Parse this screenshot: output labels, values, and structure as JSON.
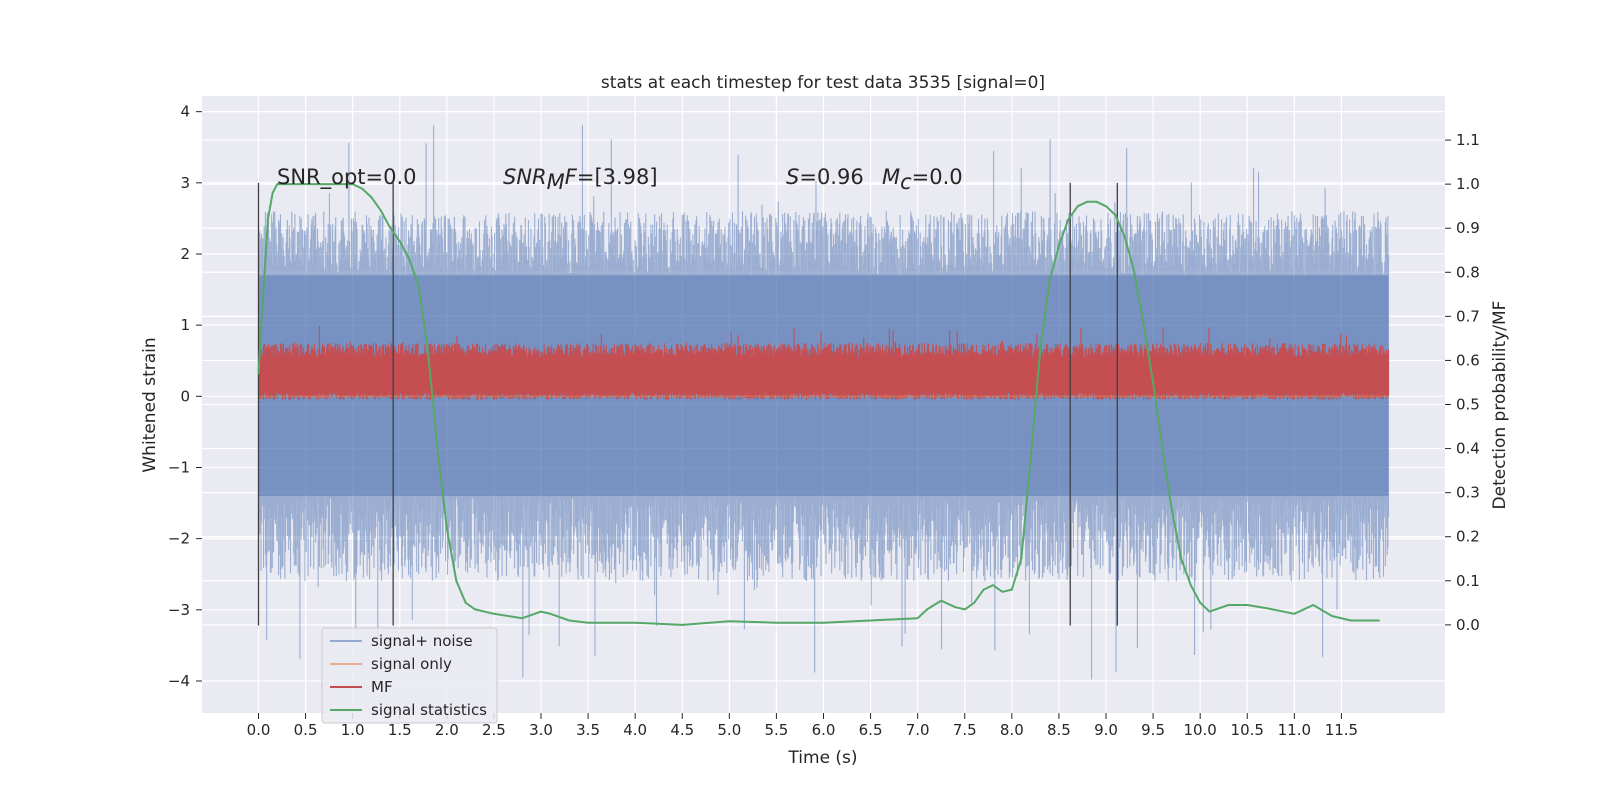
{
  "chart_data": {
    "type": "line",
    "title": "stats at each timestep for test data 3535 [signal=0]",
    "xlabel": "Time (s)",
    "ylabel_left": "Whitened strain",
    "ylabel_right": "Detection probability/MF",
    "xlim": [
      -0.6,
      12.6
    ],
    "ylim_left": [
      -4.45,
      4.22
    ],
    "ylim_right": [
      -0.2,
      1.2
    ],
    "x_ticks": [
      "0.0",
      "0.5",
      "1.0",
      "1.5",
      "2.0",
      "2.5",
      "3.0",
      "3.5",
      "4.0",
      "4.5",
      "5.0",
      "5.5",
      "6.0",
      "6.5",
      "7.0",
      "7.5",
      "8.0",
      "8.5",
      "9.0",
      "9.5",
      "10.0",
      "10.5",
      "11.0",
      "11.5"
    ],
    "y_ticks_left": [
      "4",
      "3",
      "2",
      "1",
      "0",
      "−1",
      "−2",
      "−3",
      "−4"
    ],
    "y_ticks_right": [
      "0.0",
      "0.1",
      "0.2",
      "0.3",
      "0.4",
      "0.5",
      "0.6",
      "0.7",
      "0.8",
      "0.9",
      "1.0",
      "1.1"
    ],
    "grid": true,
    "legend_position": "lower-left",
    "annotations": {
      "snr_opt": "SNR_opt=0.0",
      "snr_mf_math": "SNR",
      "snr_mf_sub": "M",
      "snr_mf_rest_it": "F",
      "snr_mf_value": "=[3.98]",
      "s_math": "S",
      "s_value": "=0.96",
      "mc_math": "M",
      "mc_sub": "c",
      "mc_value": "=0.0"
    },
    "vertical_markers": {
      "x": [
        0.0,
        1.43,
        8.62,
        9.12
      ],
      "y_range_left": [
        -3.22,
        3.0
      ]
    },
    "series": [
      {
        "name": "signal+ noise",
        "color": "#4c72b0",
        "axis": "left",
        "x_range": [
          0.0,
          12.0
        ],
        "dense_band": [
          -1.4,
          1.7
        ],
        "typical_max": 2.6,
        "typical_min": -2.6,
        "peak_max": 3.85,
        "peak_min": -4.05
      },
      {
        "name": "signal only",
        "color": "#dd8452",
        "axis": "left",
        "x": [
          0.0,
          12.0
        ],
        "y": [
          0.0,
          0.0
        ]
      },
      {
        "name": "MF",
        "color": "#c44e52",
        "axis": "left",
        "x_range": [
          0.0,
          12.0
        ],
        "dense_band": [
          0.05,
          0.55
        ],
        "typical_max": 0.75,
        "typical_min": -0.05,
        "peak_max": 1.0
      },
      {
        "name": "signal statistics",
        "color": "#55a868",
        "axis": "right",
        "x": [
          0.0,
          0.05,
          0.1,
          0.15,
          0.2,
          0.3,
          0.5,
          0.8,
          1.0,
          1.1,
          1.2,
          1.3,
          1.4,
          1.5,
          1.6,
          1.7,
          1.8,
          1.9,
          2.0,
          2.1,
          2.2,
          2.3,
          2.5,
          2.8,
          3.0,
          3.1,
          3.3,
          3.5,
          4.0,
          4.5,
          5.0,
          5.5,
          6.0,
          6.5,
          7.0,
          7.1,
          7.25,
          7.4,
          7.5,
          7.6,
          7.7,
          7.8,
          7.9,
          8.0,
          8.1,
          8.2,
          8.3,
          8.4,
          8.5,
          8.6,
          8.7,
          8.8,
          8.9,
          9.0,
          9.1,
          9.2,
          9.3,
          9.4,
          9.5,
          9.6,
          9.7,
          9.8,
          9.9,
          10.0,
          10.1,
          10.3,
          10.5,
          10.7,
          11.0,
          11.2,
          11.4,
          11.6,
          11.9
        ],
        "y": [
          0.57,
          0.75,
          0.92,
          0.98,
          1.0,
          1.0,
          1.0,
          1.0,
          1.0,
          0.99,
          0.97,
          0.94,
          0.9,
          0.87,
          0.83,
          0.77,
          0.62,
          0.4,
          0.22,
          0.1,
          0.05,
          0.035,
          0.025,
          0.015,
          0.03,
          0.025,
          0.01,
          0.005,
          0.005,
          0.0,
          0.008,
          0.005,
          0.005,
          0.01,
          0.015,
          0.035,
          0.055,
          0.04,
          0.035,
          0.05,
          0.08,
          0.09,
          0.075,
          0.08,
          0.15,
          0.38,
          0.62,
          0.78,
          0.86,
          0.92,
          0.95,
          0.96,
          0.96,
          0.95,
          0.93,
          0.88,
          0.8,
          0.68,
          0.55,
          0.4,
          0.26,
          0.15,
          0.09,
          0.05,
          0.03,
          0.045,
          0.045,
          0.038,
          0.025,
          0.045,
          0.02,
          0.01,
          0.01
        ]
      }
    ]
  }
}
